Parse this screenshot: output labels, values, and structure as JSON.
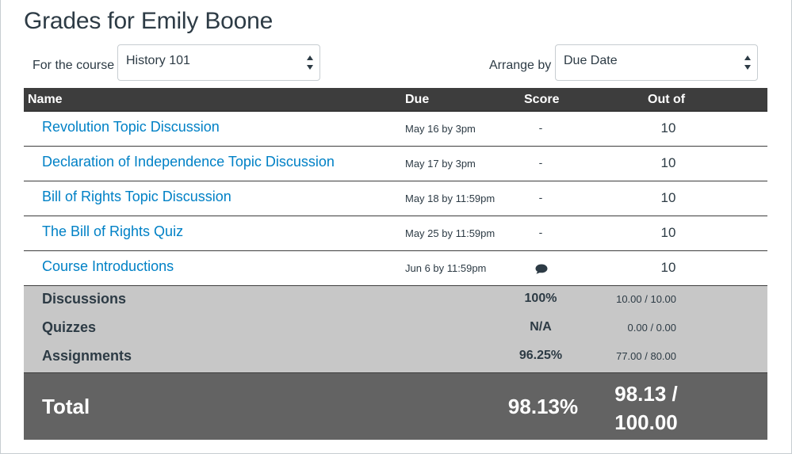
{
  "page": {
    "title": "Grades for Emily Boone"
  },
  "controls": {
    "course_label": "For the course",
    "course_value": "History 101",
    "arrange_label": "Arrange by",
    "arrange_value": "Due Date"
  },
  "table": {
    "headers": {
      "name": "Name",
      "due": "Due",
      "score": "Score",
      "out_of": "Out of"
    },
    "rows": [
      {
        "name": "Revolution Topic Discussion",
        "due": "May 16 by 3pm",
        "score": "-",
        "out_of": "10"
      },
      {
        "name": "Declaration of Independence Topic Discussion",
        "due": "May 17 by 3pm",
        "score": "-",
        "out_of": "10"
      },
      {
        "name": "Bill of Rights Topic Discussion",
        "due": "May 18 by 11:59pm",
        "score": "-",
        "out_of": "10"
      },
      {
        "name": "The Bill of Rights Quiz",
        "due": "May 25 by 11:59pm",
        "score": "-",
        "out_of": "10"
      },
      {
        "name": "Course Introductions",
        "due": "Jun 6 by 11:59pm",
        "score_icon": "comment-icon",
        "out_of": "10"
      }
    ]
  },
  "summary": [
    {
      "label": "Discussions",
      "percent": "100%",
      "points": "10.00 / 10.00"
    },
    {
      "label": "Quizzes",
      "percent": "N/A",
      "points": "0.00 / 0.00"
    },
    {
      "label": "Assignments",
      "percent": "96.25%",
      "points": "77.00 / 80.00"
    }
  ],
  "total": {
    "label": "Total",
    "percent": "98.13%",
    "points_line1": "98.13 /",
    "points_line2": "100.00"
  },
  "colors": {
    "link": "#0081c6",
    "header_bg": "#3d3d3d",
    "summary_bg": "#c7c7c7",
    "total_bg": "#636363"
  }
}
